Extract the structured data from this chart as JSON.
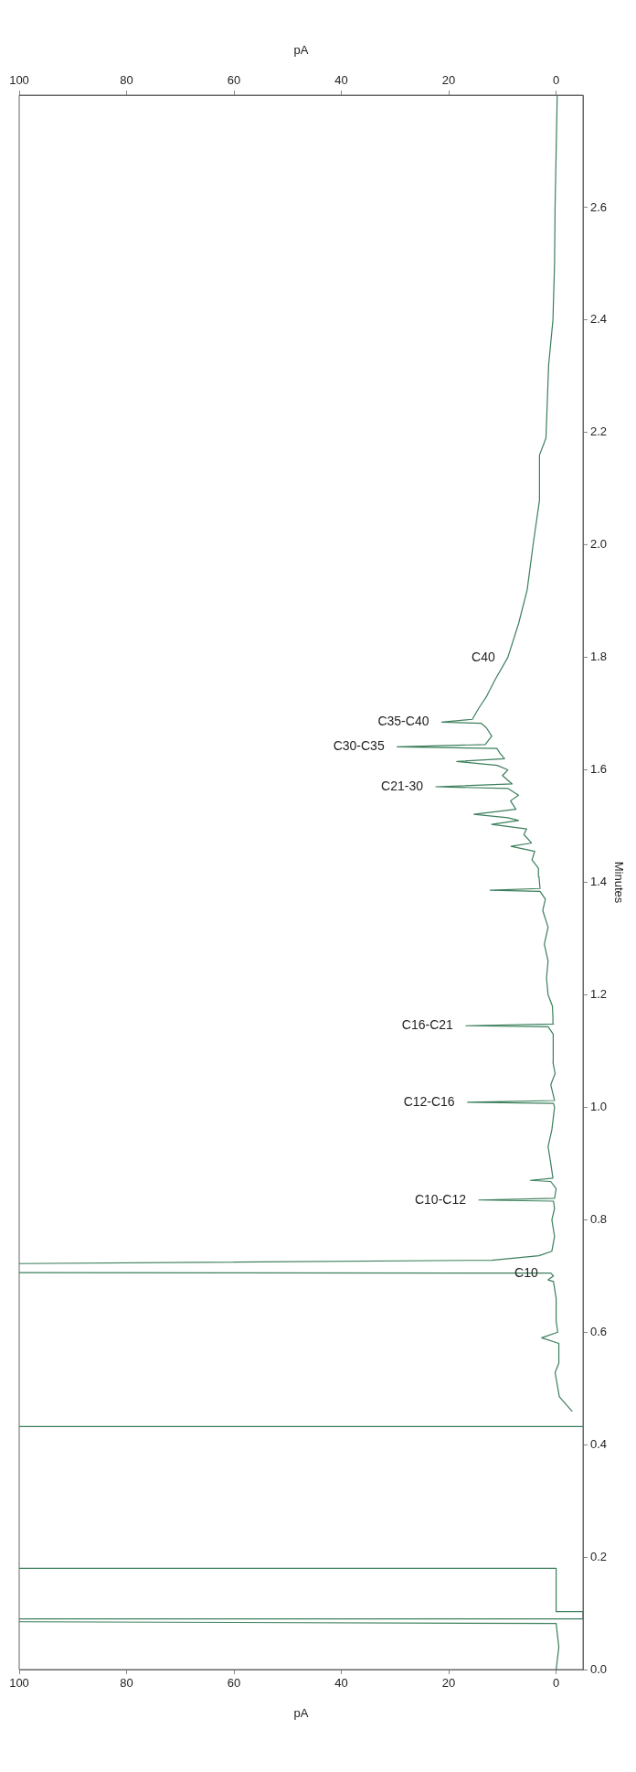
{
  "chart_data": {
    "type": "line",
    "xlabel": "pA",
    "x2label": "pA",
    "ylabel": "Minutes",
    "x": [
      0,
      -0.5,
      0,
      100,
      null,
      100,
      -5,
      -5,
      0,
      0,
      100,
      null,
      -5,
      100,
      null,
      -3,
      -0.6,
      0.2,
      -0.5,
      -0.5,
      2.7,
      -0.3,
      0,
      0,
      0.5,
      1.5,
      0.5,
      1,
      100,
      null,
      100,
      12,
      3.2,
      0.8,
      0.3,
      0.8,
      0.3,
      0.5,
      14.4,
      0.3,
      0,
      1,
      4.8,
      0.6,
      1,
      1.5,
      0.8,
      0.3,
      0.5,
      16.5,
      0.3,
      1,
      0.2,
      0.6,
      0.5,
      0.6,
      1.5,
      16.8,
      0.5,
      0.6,
      0.7,
      1.5,
      1.8,
      1.5,
      2.2,
      1.5,
      2.5,
      2,
      3,
      12.3,
      3,
      3.2,
      3.3,
      4.5,
      4,
      8.4,
      4.6,
      6,
      5.5,
      12,
      7,
      9,
      15.3,
      7.5,
      8.5,
      7,
      9,
      22.4,
      8.2,
      10,
      9,
      11,
      18.5,
      9.6,
      10.5,
      11,
      29.6,
      13.2,
      12,
      13,
      14,
      21.3,
      15.6,
      14.4,
      13,
      11.4,
      9,
      7,
      5.4,
      4.3,
      3.1,
      3.1,
      1.9,
      1.4,
      0.6,
      0.3,
      0.2,
      0,
      -0.2
    ],
    "values": [
      0,
      0.04,
      0.082,
      0.085,
      null,
      0.09,
      0.09,
      0.103,
      0.103,
      0.18,
      0.18,
      null,
      0.432,
      0.432,
      null,
      0.459,
      0.485,
      0.528,
      0.545,
      0.58,
      0.59,
      0.6,
      0.62,
      0.66,
      0.69,
      0.693,
      0.7,
      0.705,
      0.706,
      null,
      0.722,
      0.728,
      0.736,
      0.744,
      0.77,
      0.8,
      0.82,
      0.833,
      0.835,
      0.838,
      0.855,
      0.868,
      0.87,
      0.874,
      0.9,
      0.93,
      0.96,
      1.0,
      1.007,
      1.009,
      1.012,
      1.04,
      1.06,
      1.08,
      1.09,
      1.13,
      1.143,
      1.145,
      1.148,
      1.16,
      1.18,
      1.2,
      1.23,
      1.26,
      1.29,
      1.32,
      1.35,
      1.37,
      1.384,
      1.386,
      1.389,
      1.41,
      1.425,
      1.44,
      1.455,
      1.464,
      1.47,
      1.485,
      1.495,
      1.503,
      1.51,
      1.515,
      1.521,
      1.53,
      1.545,
      1.555,
      1.567,
      1.57,
      1.575,
      1.59,
      1.6,
      1.608,
      1.615,
      1.62,
      1.63,
      1.638,
      1.641,
      1.645,
      1.66,
      1.675,
      1.683,
      1.685,
      1.69,
      1.71,
      1.73,
      1.76,
      1.8,
      1.86,
      1.92,
      2.0,
      2.08,
      2.16,
      2.19,
      2.32,
      2.4,
      2.5,
      2.6,
      2.7,
      2.8
    ],
    "color": "#3c7f5c",
    "marker": "none",
    "line_style": "solid",
    "legend": false,
    "grid": false,
    "xlim": [
      100,
      -5
    ],
    "xticks": [
      0,
      20,
      40,
      60,
      80,
      100
    ],
    "x2lim": [
      100,
      -5
    ],
    "x2ticks": [
      0,
      20,
      40,
      60,
      80,
      100
    ],
    "ylim": [
      0,
      2.8
    ],
    "yticks": [
      {
        "value": 0,
        "label": "0.0"
      },
      0.2,
      0.4,
      0.6,
      0.8,
      {
        "value": 1,
        "label": "1.0"
      },
      1.2,
      1.4,
      1.6,
      1.8,
      {
        "value": 2,
        "label": "2.0"
      },
      2.2,
      2.4,
      2.6
    ],
    "annotations": [
      {
        "text": "C10",
        "x": 1,
        "y": 0.705
      },
      {
        "text": "C10-C12",
        "x": 14.4,
        "y": 0.835
      },
      {
        "text": "C12-C16",
        "x": 16.5,
        "y": 1.009
      },
      {
        "text": "C16-C21",
        "x": 16.8,
        "y": 1.145
      },
      {
        "text": "C21-30",
        "x": 22.4,
        "y": 1.57
      },
      {
        "text": "C30-C35",
        "x": 29.6,
        "y": 1.641
      },
      {
        "text": "C35-C40",
        "x": 21.3,
        "y": 1.685
      },
      {
        "text": "C40",
        "x": 9,
        "y": 1.8
      }
    ]
  }
}
